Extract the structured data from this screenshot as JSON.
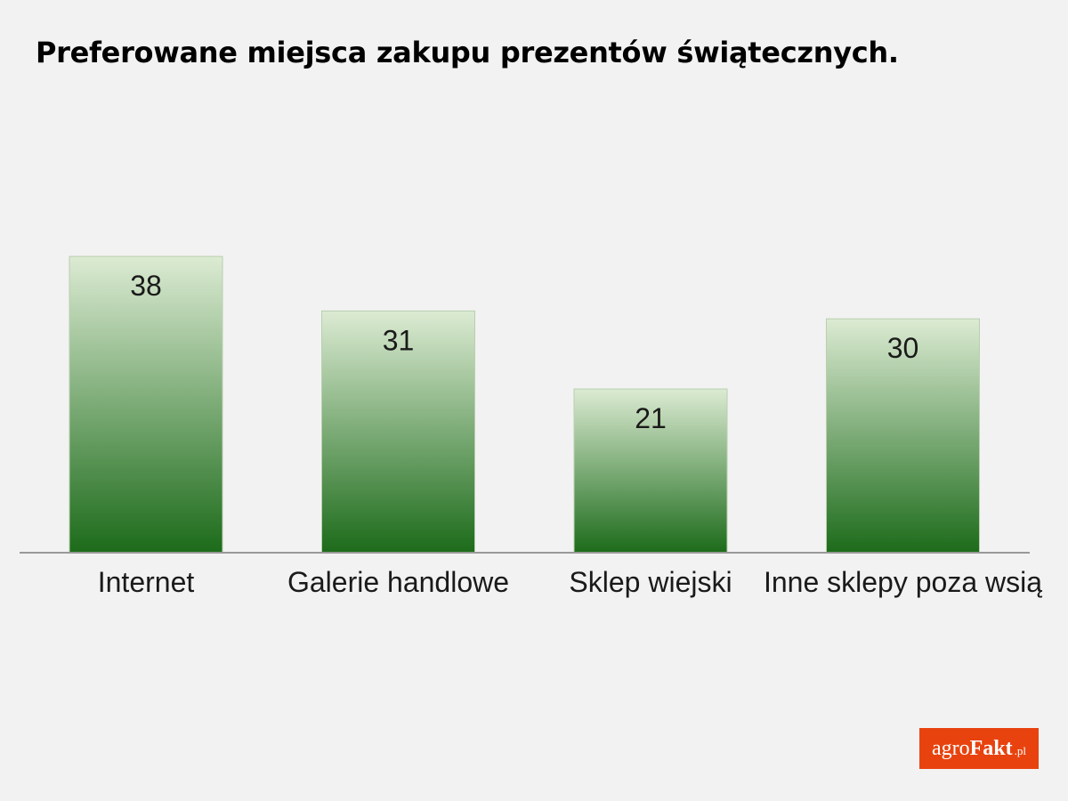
{
  "title": "Preferowane miejsca zakupu prezentów świątecznych.",
  "chart_data": {
    "type": "bar",
    "title": "Preferowane miejsca zakupu prezentów świątecznych.",
    "categories": [
      "Internet",
      "Galerie handlowe",
      "Sklep wiejski",
      "Inne sklepy poza wsią"
    ],
    "values": [
      38,
      31,
      21,
      30
    ],
    "xlabel": "",
    "ylabel": "",
    "ylim": [
      0,
      50
    ],
    "grid": false,
    "legend": "none",
    "colors": {
      "bar_top": "#dcebd3",
      "bar_bottom": "#1c6b1a",
      "bar_border": "#b9cfb0",
      "axis": "#999999"
    }
  },
  "logo": {
    "part1": "agro",
    "part2": "Fakt",
    "part3": ".pl",
    "color": "#e8430f"
  }
}
